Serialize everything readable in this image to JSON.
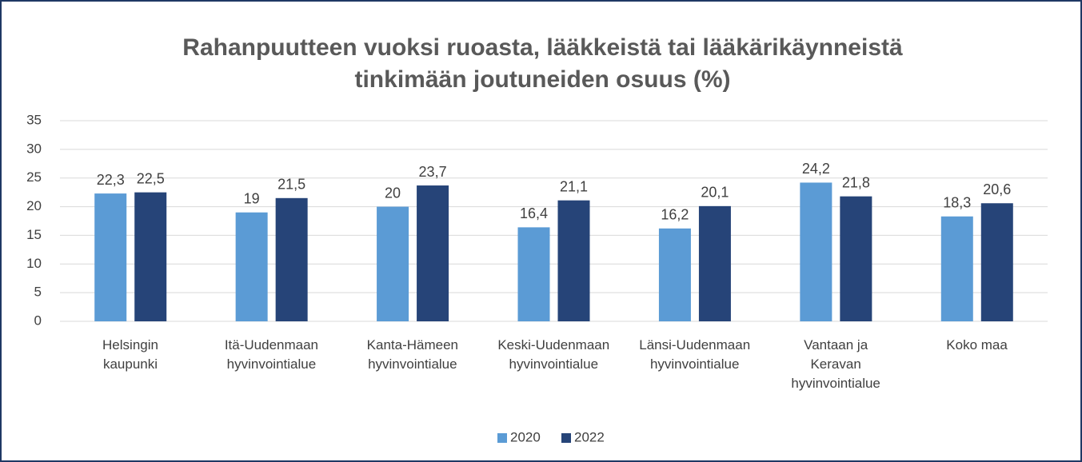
{
  "chart_data": {
    "type": "bar",
    "title": "Rahanpuutteen vuoksi ruoasta, lääkkeistä tai lääkärikäynneistä\ntinkimään joutuneiden osuus (%)",
    "categories": [
      "Helsingin\nkaupunki",
      "Itä-Uudenmaan\nhyvinvointialue",
      "Kanta-Hämeen\nhyvinvointialue",
      "Keski-Uudenmaan\nhyvinvointialue",
      "Länsi-Uudenmaan\nhyvinvointialue",
      "Vantaan ja\nKeravan\nhyvinvointialue",
      "Koko maa"
    ],
    "series": [
      {
        "name": "2020",
        "color": "#5b9bd5",
        "values": [
          22.3,
          19,
          20,
          16.4,
          16.2,
          24.2,
          18.3
        ],
        "value_labels": [
          "22,3",
          "19",
          "20",
          "16,4",
          "16,2",
          "24,2",
          "18,3"
        ]
      },
      {
        "name": "2022",
        "color": "#264478",
        "values": [
          22.5,
          21.5,
          23.7,
          21.1,
          20.1,
          21.8,
          20.6
        ],
        "value_labels": [
          "22,5",
          "21,5",
          "23,7",
          "21,1",
          "20,1",
          "21,8",
          "20,6"
        ]
      }
    ],
    "ylim": [
      0,
      35
    ],
    "yticks": [
      0,
      5,
      10,
      15,
      20,
      25,
      30,
      35
    ],
    "grid": true,
    "legend": "bottom"
  }
}
